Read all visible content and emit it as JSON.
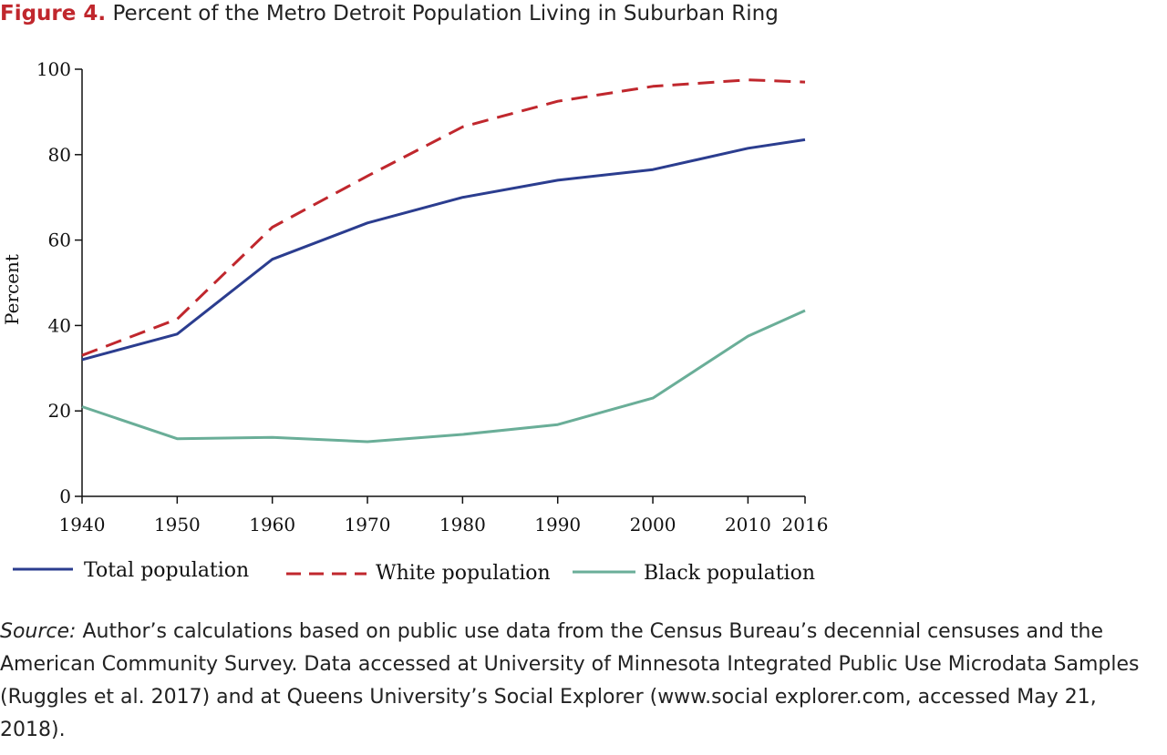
{
  "figure": {
    "label": "Figure 4.",
    "title": "Percent of the Metro Detroit Population Living in Suburban Ring"
  },
  "colors": {
    "title_label": "#c0272d",
    "total": "#2b3d8f",
    "white": "#c0272d",
    "black": "#6aae98"
  },
  "chart_data": {
    "type": "line",
    "ylabel": "Percent",
    "xlabel": "",
    "x": [
      1940,
      1950,
      1960,
      1970,
      1980,
      1990,
      2000,
      2010,
      2016
    ],
    "xlim": [
      1940,
      2016
    ],
    "ylim": [
      0,
      100
    ],
    "yticks": [
      0,
      20,
      40,
      60,
      80,
      100
    ],
    "xtick_labels": [
      "1940",
      "1950",
      "1960",
      "1970",
      "1980",
      "1990",
      "2000",
      "2010",
      "2016"
    ],
    "grid": false,
    "legend_position": "bottom",
    "series": [
      {
        "name": "Total population",
        "style": "solid",
        "color": "#2b3d8f",
        "values": [
          32,
          38,
          55.5,
          64,
          70,
          74,
          76.5,
          81.5,
          83.5
        ]
      },
      {
        "name": "White population",
        "style": "dashed",
        "color": "#c0272d",
        "values": [
          33,
          41.5,
          63,
          75,
          86.5,
          92.5,
          96,
          97.5,
          97
        ]
      },
      {
        "name": "Black population",
        "style": "solid",
        "color": "#6aae98",
        "values": [
          21,
          13.5,
          13.8,
          12.8,
          14.5,
          16.8,
          23,
          37.5,
          43.5
        ]
      }
    ]
  },
  "source": {
    "label": "Source:",
    "text": " Author’s calculations based on public use data from the Census Bureau’s decennial censuses and the American Community Survey. Data accessed at University of Minnesota Integrated Public Use Microdata Samples (Ruggles et al. 2017) and at Queens University’s Social Explorer (www.social explorer.com, accessed May 21, 2018)."
  }
}
